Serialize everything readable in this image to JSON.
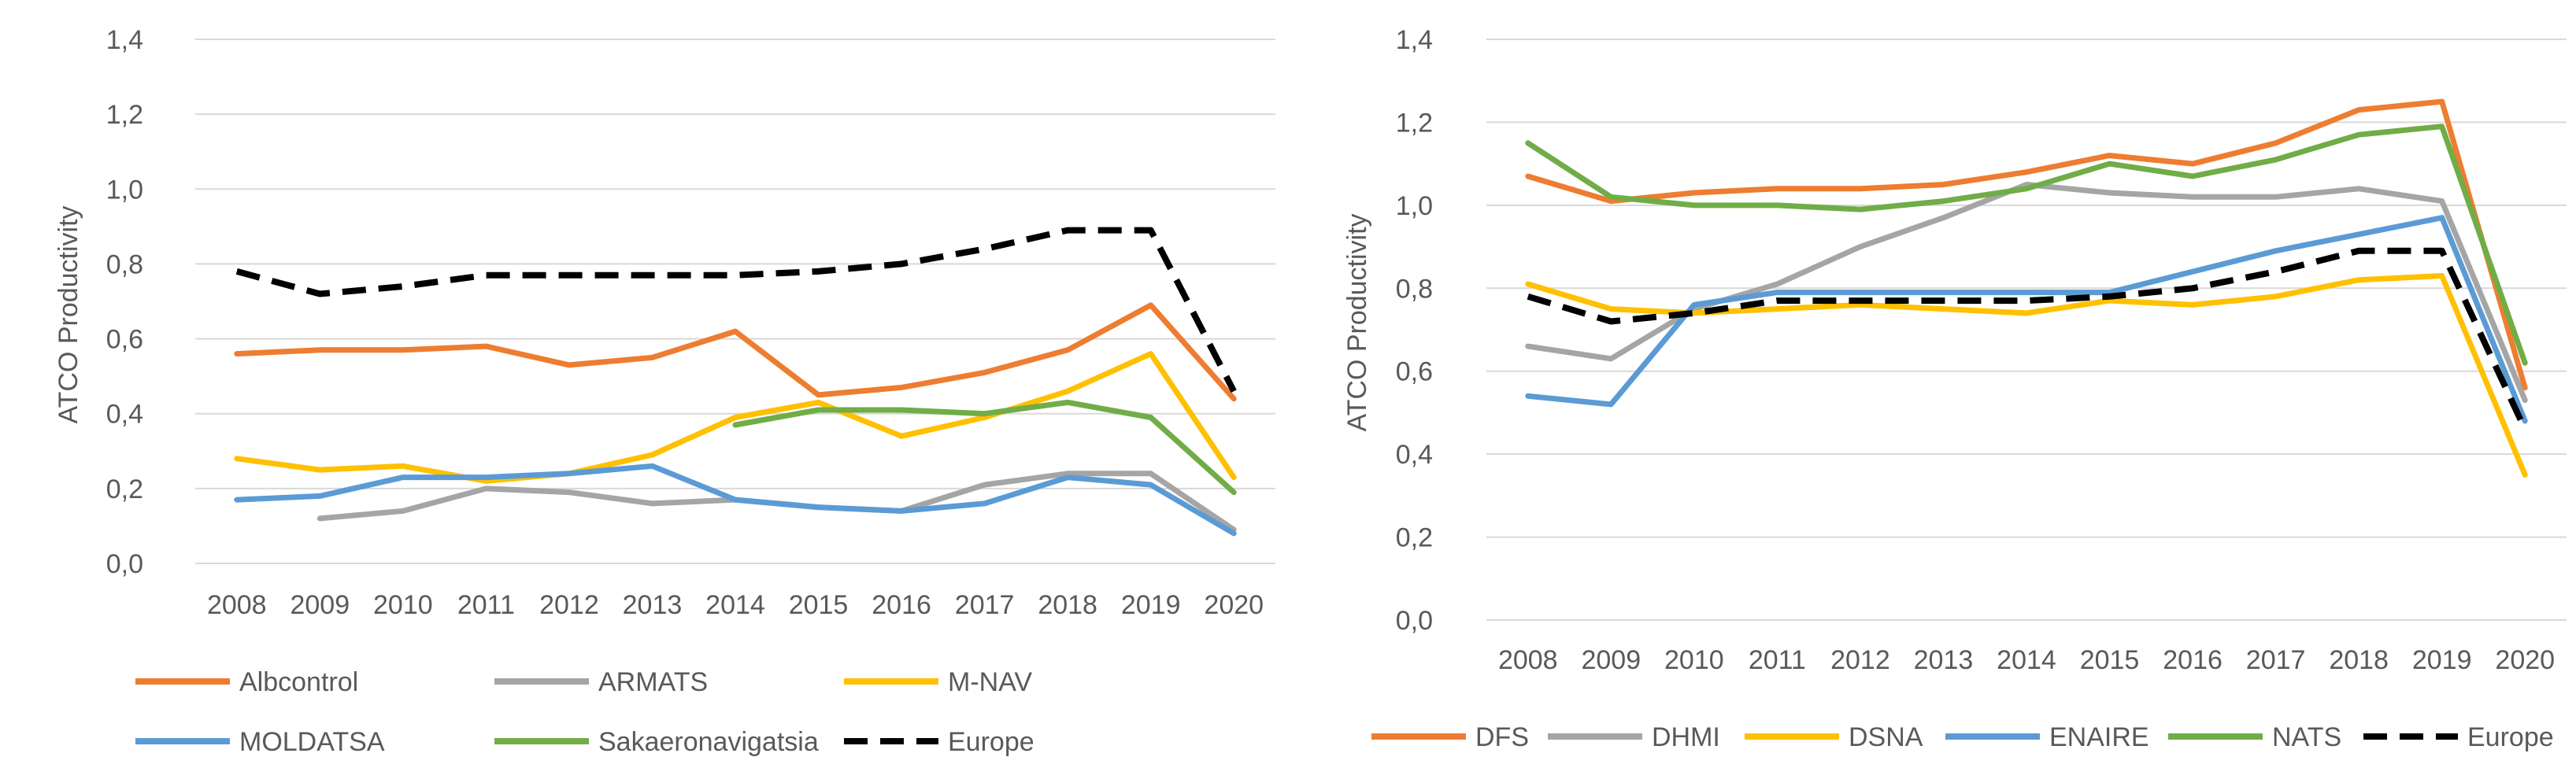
{
  "colors": {
    "orange": "#ED7D31",
    "gray": "#A5A5A5",
    "yellow": "#FFC000",
    "blue": "#5B9BD5",
    "green": "#70AD47",
    "black": "#000000",
    "gridline": "#D9D9D9",
    "text": "#595959"
  },
  "chart_data": [
    {
      "type": "line",
      "title": "",
      "xlabel": "",
      "ylabel": "ATCO Productivity",
      "ylim": [
        0,
        1.4
      ],
      "yticks": [
        "0,0",
        "0,2",
        "0,4",
        "0,6",
        "0,8",
        "1,0",
        "1,2",
        "1,4"
      ],
      "categories": [
        "2008",
        "2009",
        "2010",
        "2011",
        "2012",
        "2013",
        "2014",
        "2015",
        "2016",
        "2017",
        "2018",
        "2019",
        "2020"
      ],
      "grid": "horizontal",
      "legend_position": "bottom",
      "series": [
        {
          "name": "Albcontrol",
          "color": "#ED7D31",
          "dash": "solid",
          "values": [
            0.56,
            0.57,
            0.57,
            0.58,
            0.53,
            0.55,
            0.62,
            0.45,
            0.47,
            0.51,
            0.57,
            0.69,
            0.44
          ]
        },
        {
          "name": "ARMATS",
          "color": "#A5A5A5",
          "dash": "solid",
          "values": [
            null,
            0.12,
            0.14,
            0.2,
            0.19,
            0.16,
            0.17,
            0.15,
            0.14,
            0.21,
            0.24,
            0.24,
            0.09
          ]
        },
        {
          "name": "M-NAV",
          "color": "#FFC000",
          "dash": "solid",
          "values": [
            0.28,
            0.25,
            0.26,
            0.22,
            0.24,
            0.29,
            0.39,
            0.43,
            0.34,
            0.39,
            0.46,
            0.56,
            0.23
          ]
        },
        {
          "name": "MOLDATSA",
          "color": "#5B9BD5",
          "dash": "solid",
          "values": [
            0.17,
            0.18,
            0.23,
            0.23,
            0.24,
            0.26,
            0.17,
            0.15,
            0.14,
            0.16,
            0.23,
            0.21,
            0.08
          ]
        },
        {
          "name": "Sakaeronavigatsia",
          "color": "#70AD47",
          "dash": "solid",
          "values": [
            null,
            null,
            null,
            null,
            null,
            null,
            0.37,
            0.41,
            0.41,
            0.4,
            0.43,
            0.39,
            0.19
          ]
        },
        {
          "name": "Europe",
          "color": "#000000",
          "dash": "dashed",
          "values": [
            0.78,
            0.72,
            0.74,
            0.77,
            0.77,
            0.77,
            0.77,
            0.78,
            0.8,
            0.84,
            0.89,
            0.89,
            0.46
          ]
        }
      ],
      "legend": [
        [
          "Albcontrol",
          "ARMATS",
          "M-NAV"
        ],
        [
          "MOLDATSA",
          "Sakaeronavigatsia",
          "Europe"
        ]
      ]
    },
    {
      "type": "line",
      "title": "",
      "xlabel": "",
      "ylabel": "ATCO Productivity",
      "ylim": [
        0,
        1.4
      ],
      "yticks": [
        "0,0",
        "0,2",
        "0,4",
        "0,6",
        "0,8",
        "1,0",
        "1,2",
        "1,4"
      ],
      "categories": [
        "2008",
        "2009",
        "2010",
        "2011",
        "2012",
        "2013",
        "2014",
        "2015",
        "2016",
        "2017",
        "2018",
        "2019",
        "2020"
      ],
      "grid": "horizontal",
      "legend_position": "bottom",
      "series": [
        {
          "name": "DFS",
          "color": "#ED7D31",
          "dash": "solid",
          "values": [
            1.07,
            1.01,
            1.03,
            1.04,
            1.04,
            1.05,
            1.08,
            1.12,
            1.1,
            1.15,
            1.23,
            1.25,
            0.56
          ]
        },
        {
          "name": "DHMI",
          "color": "#A5A5A5",
          "dash": "solid",
          "values": [
            0.66,
            0.63,
            0.75,
            0.81,
            0.9,
            0.97,
            1.05,
            1.03,
            1.02,
            1.02,
            1.04,
            1.01,
            0.53
          ]
        },
        {
          "name": "DSNA",
          "color": "#FFC000",
          "dash": "solid",
          "values": [
            0.81,
            0.75,
            0.74,
            0.75,
            0.76,
            0.75,
            0.74,
            0.77,
            0.76,
            0.78,
            0.82,
            0.83,
            0.35
          ]
        },
        {
          "name": "ENAIRE",
          "color": "#5B9BD5",
          "dash": "solid",
          "values": [
            0.54,
            0.52,
            0.76,
            0.79,
            0.79,
            0.79,
            0.79,
            0.79,
            0.84,
            0.89,
            0.93,
            0.97,
            0.48
          ]
        },
        {
          "name": "NATS",
          "color": "#70AD47",
          "dash": "solid",
          "values": [
            1.15,
            1.02,
            1.0,
            1.0,
            0.99,
            1.01,
            1.04,
            1.1,
            1.07,
            1.11,
            1.17,
            1.19,
            0.62
          ]
        },
        {
          "name": "Europe",
          "color": "#000000",
          "dash": "dashed",
          "values": [
            0.78,
            0.72,
            0.74,
            0.77,
            0.77,
            0.77,
            0.77,
            0.78,
            0.8,
            0.84,
            0.89,
            0.89,
            0.46
          ]
        }
      ],
      "legend": [
        [
          "DFS",
          "DHMI",
          "DSNA",
          "ENAIRE",
          "NATS",
          "Europe"
        ]
      ]
    }
  ]
}
